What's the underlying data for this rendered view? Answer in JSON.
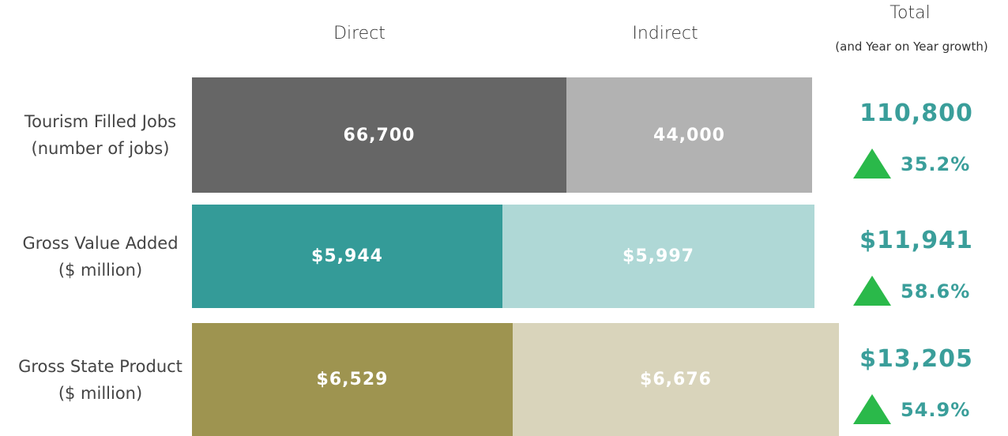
{
  "header": {
    "direct": "Direct",
    "indirect": "Indirect",
    "total": "Total",
    "total_note": "(and Year on Year growth)"
  },
  "rows": [
    {
      "label": [
        "Tourism Filled Jobs",
        "(number of jobs)"
      ],
      "direct": "66,700",
      "indirect": "44,000",
      "total": "110,800",
      "growth": "35.2%"
    },
    {
      "label": [
        "Gross Value Added",
        "($ million)"
      ],
      "direct": "$5,944",
      "indirect": "$5,997",
      "total": "$11,941",
      "growth": "58.6%"
    },
    {
      "label": [
        "Gross State Product",
        "($ million)"
      ],
      "direct": "$6,529",
      "indirect": "$6,676",
      "total": "$13,205",
      "growth": "54.9%"
    }
  ]
}
